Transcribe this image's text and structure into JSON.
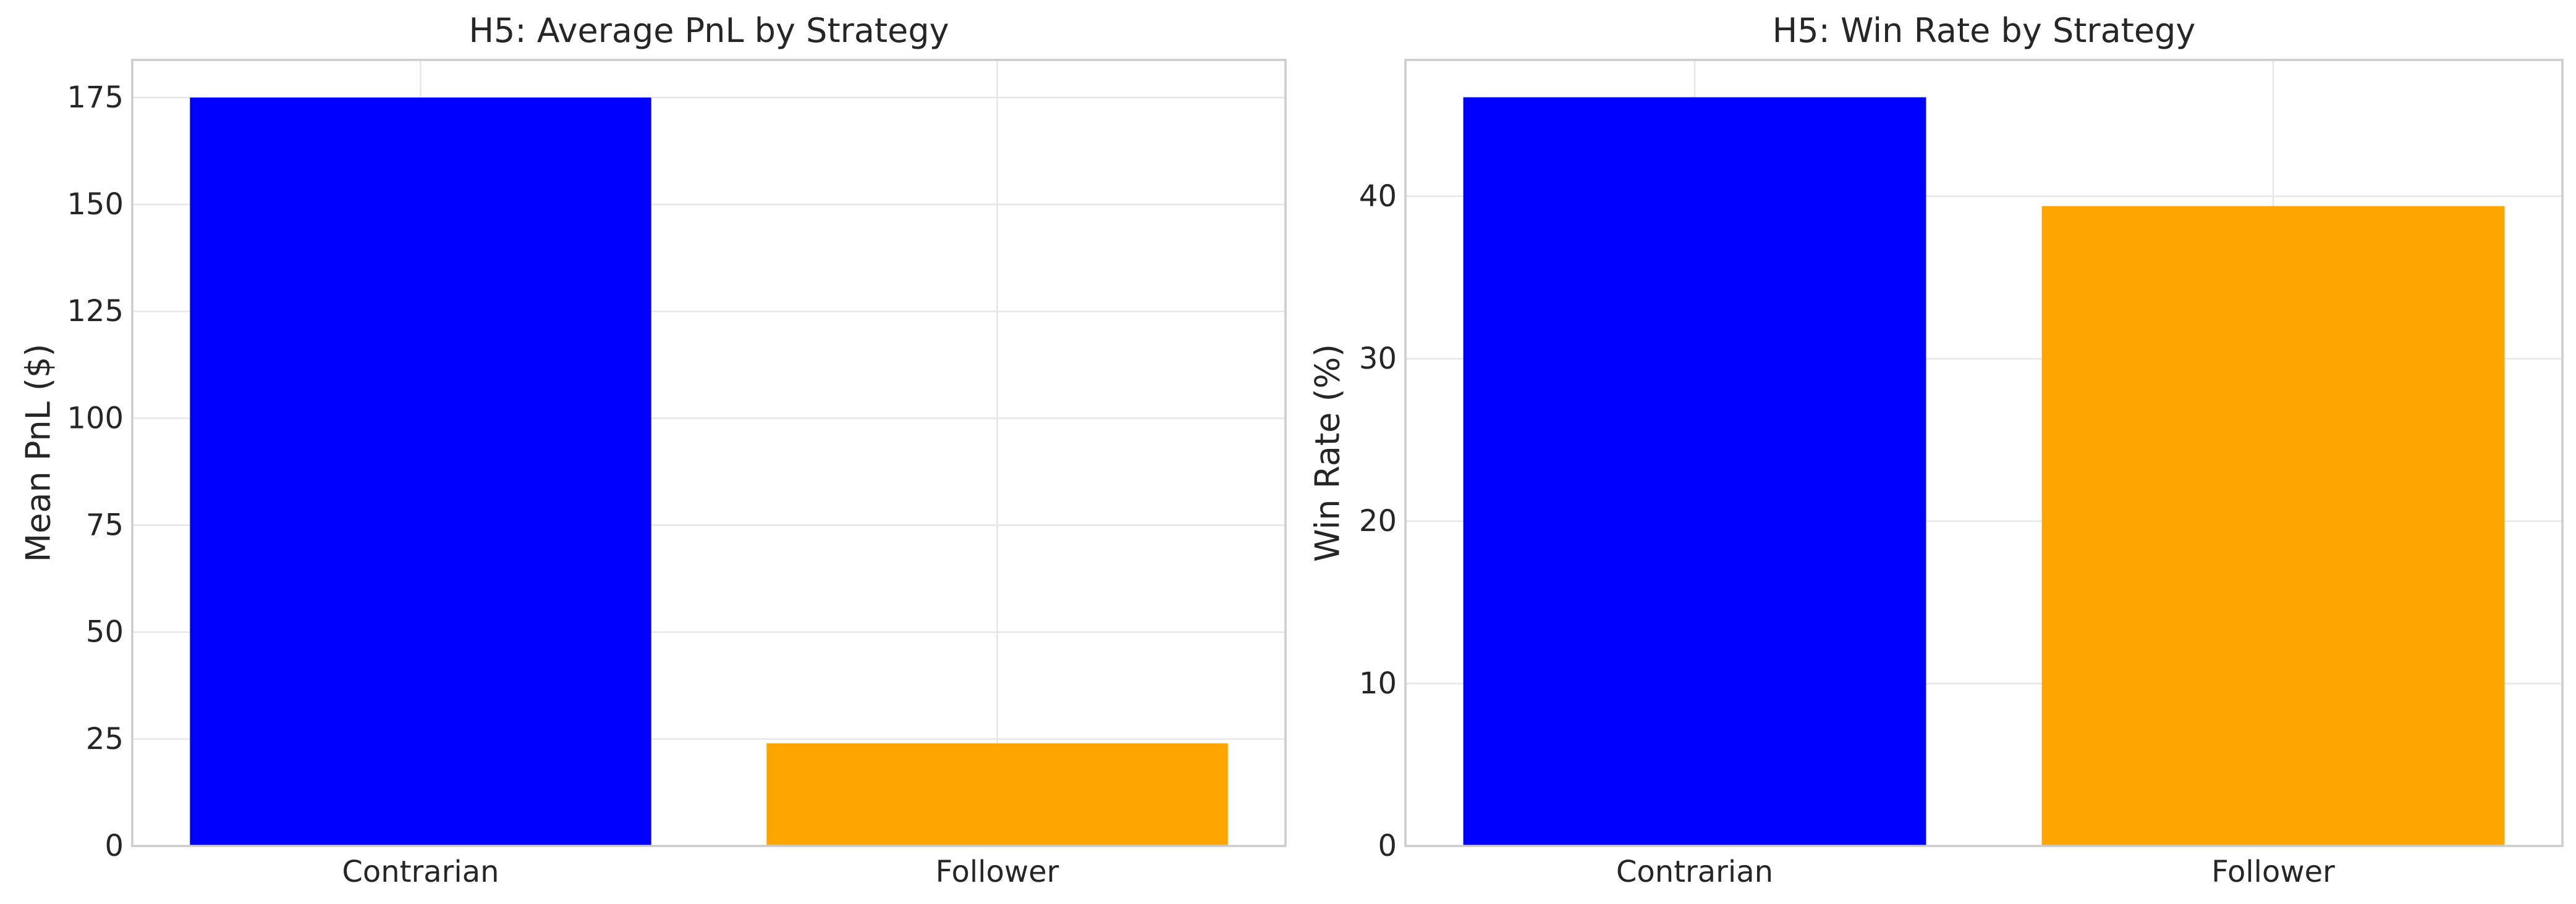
{
  "chart_data": [
    {
      "type": "bar",
      "title": "H5: Average PnL by Strategy",
      "xlabel": "",
      "ylabel": "Mean PnL ($)",
      "categories": [
        "Contrarian",
        "Follower"
      ],
      "values": [
        175,
        24
      ],
      "colors": [
        "#0000ff",
        "#ffa500"
      ],
      "ylim": [
        0,
        183.8
      ],
      "yticks": [
        0,
        25,
        50,
        75,
        100,
        125,
        150,
        175
      ],
      "grid": true,
      "legend": "none"
    },
    {
      "type": "bar",
      "title": "H5: Win Rate by Strategy",
      "xlabel": "",
      "ylabel": "Win Rate (%)",
      "categories": [
        "Contrarian",
        "Follower"
      ],
      "values": [
        46.1,
        39.4
      ],
      "colors": [
        "#0000ff",
        "#ffa500"
      ],
      "ylim": [
        0,
        48.4
      ],
      "yticks": [
        0,
        10,
        20,
        30,
        40
      ],
      "grid": true,
      "legend": "none"
    }
  ]
}
